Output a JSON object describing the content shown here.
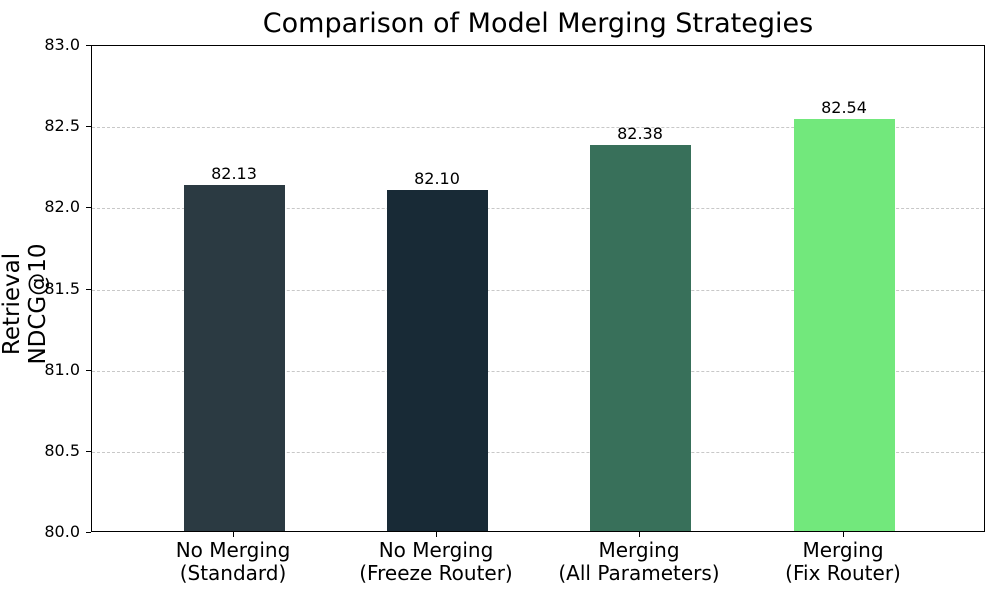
{
  "chart_data": {
    "type": "bar",
    "title": "Comparison of Model Merging Strategies",
    "xlabel": "",
    "ylabel": "Retrieval NDCG@10",
    "categories": [
      "No Merging\n(Standard)",
      "No Merging\n(Freeze Router)",
      "Merging\n(All Parameters)",
      "Merging\n(Fix Router)"
    ],
    "values": [
      82.13,
      82.1,
      82.38,
      82.54
    ],
    "value_labels": [
      "82.13",
      "82.10",
      "82.38",
      "82.54"
    ],
    "colors": [
      "#2b3a42",
      "#182a36",
      "#38705a",
      "#72e87c"
    ],
    "ylim": [
      80.0,
      83.0
    ],
    "yticks": [
      "80.0",
      "80.5",
      "81.0",
      "81.5",
      "82.0",
      "82.5",
      "83.0"
    ],
    "grid": "y dashed",
    "legend": null
  }
}
